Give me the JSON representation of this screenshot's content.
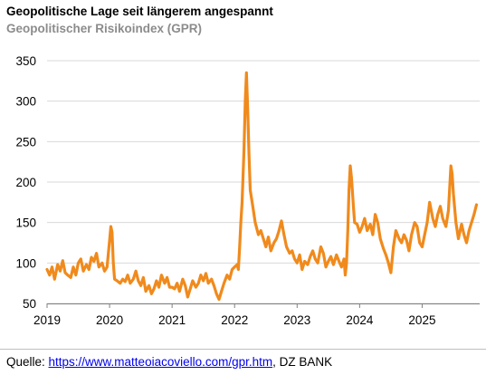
{
  "title": "Geopolitische Lage seit längerem angespannt",
  "subtitle": "Geopolitischer Risikoindex (GPR)",
  "source": {
    "prefix": "Quelle: ",
    "link_text": "https://www.matteoiacoviello.com/gpr.htm",
    "suffix": ", DZ BANK"
  },
  "colors": {
    "series": "#f08a1c",
    "grid": "#d9d9d9",
    "axis": "#808080"
  },
  "chart_data": {
    "type": "line",
    "title": "Geopolitische Lage seit längerem angespannt",
    "subtitle": "Geopolitischer Risikoindex (GPR)",
    "xlabel": "",
    "ylabel": "",
    "ylim": [
      50,
      350
    ],
    "yticks": [
      50,
      100,
      150,
      200,
      250,
      300,
      350
    ],
    "xlim": [
      2019,
      2025.92
    ],
    "xticks": [
      "2019",
      "2020",
      "2021",
      "2022",
      "2023",
      "2024",
      "2025"
    ],
    "grid": true,
    "legend": "none",
    "series": [
      {
        "values": [
          [
            2019.0,
            92
          ],
          [
            2019.04,
            85
          ],
          [
            2019.08,
            95
          ],
          [
            2019.12,
            80
          ],
          [
            2019.17,
            98
          ],
          [
            2019.21,
            90
          ],
          [
            2019.25,
            103
          ],
          [
            2019.29,
            88
          ],
          [
            2019.33,
            85
          ],
          [
            2019.38,
            82
          ],
          [
            2019.42,
            95
          ],
          [
            2019.46,
            85
          ],
          [
            2019.5,
            100
          ],
          [
            2019.54,
            105
          ],
          [
            2019.58,
            90
          ],
          [
            2019.63,
            98
          ],
          [
            2019.67,
            92
          ],
          [
            2019.71,
            107
          ],
          [
            2019.75,
            102
          ],
          [
            2019.79,
            112
          ],
          [
            2019.83,
            95
          ],
          [
            2019.88,
            100
          ],
          [
            2019.92,
            90
          ],
          [
            2019.96,
            95
          ],
          [
            2020.0,
            128
          ],
          [
            2020.02,
            145
          ],
          [
            2020.04,
            138
          ],
          [
            2020.06,
            100
          ],
          [
            2020.08,
            80
          ],
          [
            2020.12,
            78
          ],
          [
            2020.17,
            75
          ],
          [
            2020.21,
            80
          ],
          [
            2020.25,
            77
          ],
          [
            2020.29,
            85
          ],
          [
            2020.33,
            75
          ],
          [
            2020.38,
            80
          ],
          [
            2020.42,
            90
          ],
          [
            2020.46,
            78
          ],
          [
            2020.5,
            72
          ],
          [
            2020.54,
            82
          ],
          [
            2020.58,
            65
          ],
          [
            2020.63,
            72
          ],
          [
            2020.67,
            62
          ],
          [
            2020.71,
            68
          ],
          [
            2020.75,
            78
          ],
          [
            2020.79,
            70
          ],
          [
            2020.83,
            85
          ],
          [
            2020.88,
            75
          ],
          [
            2020.92,
            82
          ],
          [
            2020.96,
            70
          ],
          [
            2021.0,
            70
          ],
          [
            2021.04,
            68
          ],
          [
            2021.08,
            75
          ],
          [
            2021.12,
            65
          ],
          [
            2021.17,
            80
          ],
          [
            2021.21,
            72
          ],
          [
            2021.25,
            58
          ],
          [
            2021.29,
            68
          ],
          [
            2021.33,
            78
          ],
          [
            2021.38,
            70
          ],
          [
            2021.42,
            75
          ],
          [
            2021.46,
            85
          ],
          [
            2021.5,
            78
          ],
          [
            2021.54,
            87
          ],
          [
            2021.58,
            75
          ],
          [
            2021.63,
            80
          ],
          [
            2021.67,
            72
          ],
          [
            2021.71,
            62
          ],
          [
            2021.75,
            55
          ],
          [
            2021.79,
            65
          ],
          [
            2021.83,
            75
          ],
          [
            2021.88,
            85
          ],
          [
            2021.92,
            80
          ],
          [
            2021.96,
            92
          ],
          [
            2022.0,
            95
          ],
          [
            2022.04,
            98
          ],
          [
            2022.06,
            92
          ],
          [
            2022.08,
            120
          ],
          [
            2022.1,
            150
          ],
          [
            2022.12,
            175
          ],
          [
            2022.15,
            240
          ],
          [
            2022.17,
            300
          ],
          [
            2022.19,
            335
          ],
          [
            2022.21,
            290
          ],
          [
            2022.23,
            235
          ],
          [
            2022.25,
            190
          ],
          [
            2022.29,
            170
          ],
          [
            2022.33,
            150
          ],
          [
            2022.38,
            135
          ],
          [
            2022.42,
            140
          ],
          [
            2022.46,
            130
          ],
          [
            2022.5,
            120
          ],
          [
            2022.54,
            132
          ],
          [
            2022.58,
            115
          ],
          [
            2022.63,
            125
          ],
          [
            2022.67,
            130
          ],
          [
            2022.71,
            140
          ],
          [
            2022.75,
            152
          ],
          [
            2022.79,
            135
          ],
          [
            2022.83,
            120
          ],
          [
            2022.88,
            112
          ],
          [
            2022.92,
            115
          ],
          [
            2022.96,
            105
          ],
          [
            2023.0,
            100
          ],
          [
            2023.04,
            110
          ],
          [
            2023.08,
            92
          ],
          [
            2023.12,
            102
          ],
          [
            2023.17,
            98
          ],
          [
            2023.21,
            108
          ],
          [
            2023.25,
            115
          ],
          [
            2023.29,
            105
          ],
          [
            2023.33,
            100
          ],
          [
            2023.38,
            120
          ],
          [
            2023.42,
            112
          ],
          [
            2023.46,
            95
          ],
          [
            2023.5,
            102
          ],
          [
            2023.54,
            108
          ],
          [
            2023.58,
            98
          ],
          [
            2023.63,
            110
          ],
          [
            2023.67,
            102
          ],
          [
            2023.71,
            95
          ],
          [
            2023.75,
            105
          ],
          [
            2023.77,
            85
          ],
          [
            2023.79,
            100
          ],
          [
            2023.81,
            140
          ],
          [
            2023.83,
            190
          ],
          [
            2023.85,
            220
          ],
          [
            2023.87,
            205
          ],
          [
            2023.9,
            170
          ],
          [
            2023.92,
            150
          ],
          [
            2023.96,
            148
          ],
          [
            2024.0,
            138
          ],
          [
            2024.04,
            145
          ],
          [
            2024.08,
            155
          ],
          [
            2024.12,
            140
          ],
          [
            2024.17,
            148
          ],
          [
            2024.21,
            135
          ],
          [
            2024.25,
            160
          ],
          [
            2024.29,
            150
          ],
          [
            2024.33,
            130
          ],
          [
            2024.38,
            118
          ],
          [
            2024.42,
            110
          ],
          [
            2024.46,
            100
          ],
          [
            2024.5,
            88
          ],
          [
            2024.54,
            120
          ],
          [
            2024.58,
            140
          ],
          [
            2024.63,
            130
          ],
          [
            2024.67,
            125
          ],
          [
            2024.71,
            135
          ],
          [
            2024.75,
            128
          ],
          [
            2024.79,
            115
          ],
          [
            2024.83,
            135
          ],
          [
            2024.88,
            150
          ],
          [
            2024.92,
            145
          ],
          [
            2024.96,
            125
          ],
          [
            2025.0,
            120
          ],
          [
            2025.04,
            135
          ],
          [
            2025.08,
            150
          ],
          [
            2025.12,
            175
          ],
          [
            2025.17,
            155
          ],
          [
            2025.21,
            145
          ],
          [
            2025.25,
            160
          ],
          [
            2025.29,
            170
          ],
          [
            2025.33,
            155
          ],
          [
            2025.38,
            145
          ],
          [
            2025.42,
            165
          ],
          [
            2025.46,
            220
          ],
          [
            2025.48,
            210
          ],
          [
            2025.5,
            185
          ],
          [
            2025.54,
            150
          ],
          [
            2025.58,
            130
          ],
          [
            2025.63,
            148
          ],
          [
            2025.67,
            135
          ],
          [
            2025.71,
            125
          ],
          [
            2025.75,
            140
          ],
          [
            2025.79,
            150
          ],
          [
            2025.83,
            160
          ],
          [
            2025.87,
            172
          ]
        ]
      }
    ]
  }
}
